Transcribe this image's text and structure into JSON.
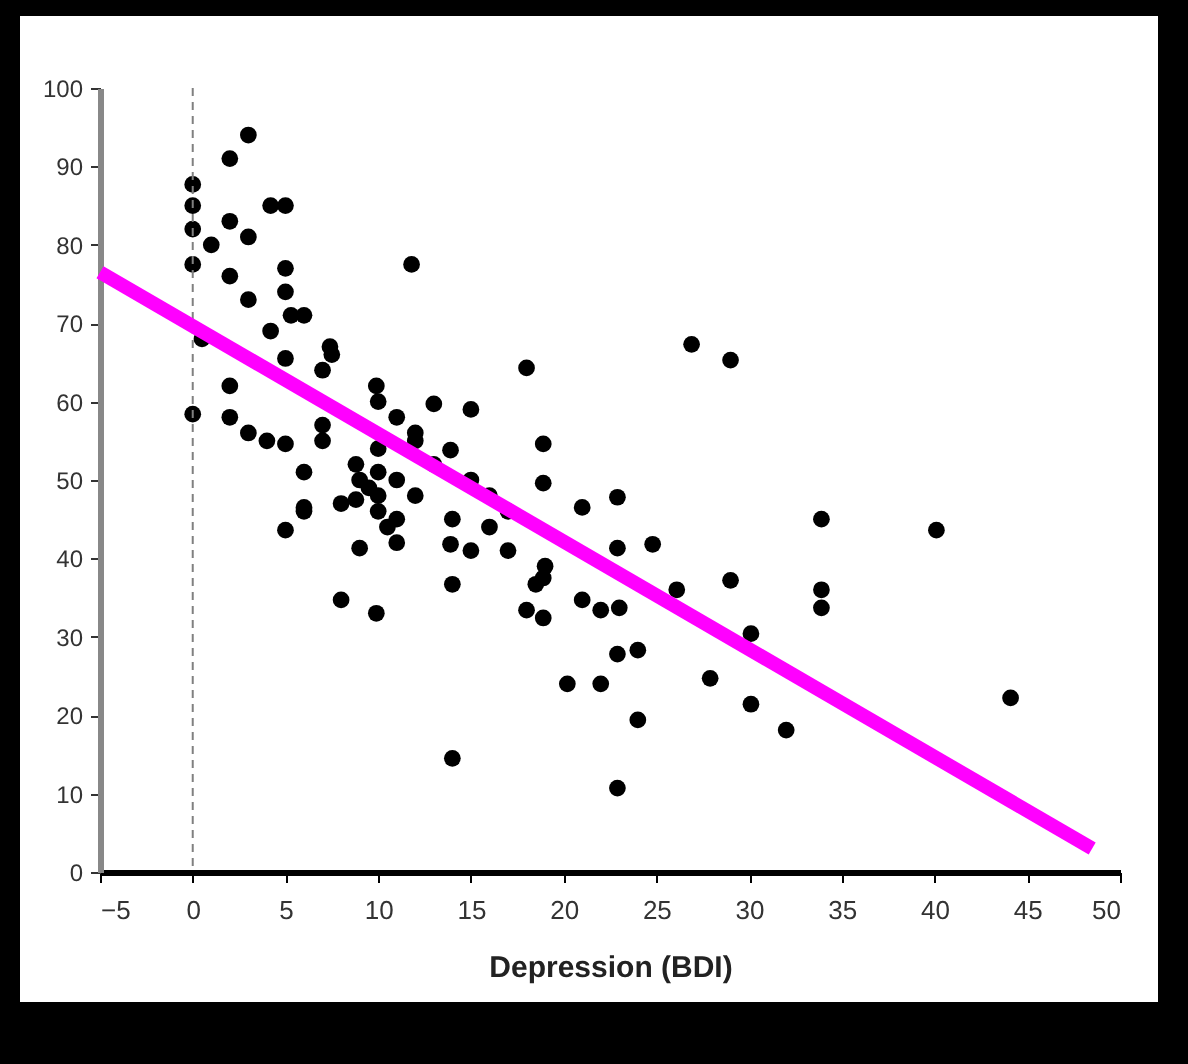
{
  "chart_data": {
    "type": "scatter",
    "xlabel": "Depression (BDI)",
    "xlim": [
      -5,
      50
    ],
    "xticks": [
      -5,
      0,
      5,
      10,
      15,
      20,
      25,
      30,
      35,
      40,
      45,
      50
    ],
    "ylim": [
      0,
      100
    ],
    "yticks": [
      0,
      10,
      20,
      30,
      40,
      50,
      60,
      70,
      80,
      90,
      100
    ],
    "grid": false,
    "marker": "circle",
    "ref_lines": [
      {
        "axis": "x",
        "value": 0,
        "color": "#808080",
        "line_style": "dashed"
      }
    ],
    "series": [
      {
        "type": "scatter",
        "color": "#000000",
        "x": [
          0,
          0,
          0,
          0,
          0,
          0.5,
          2,
          3,
          1,
          2,
          3,
          4.2,
          5,
          2,
          3,
          5,
          5,
          11.8,
          4.2,
          5.3,
          6,
          7.4,
          7.5,
          7,
          5,
          2,
          2,
          3,
          4,
          5,
          9.9,
          10,
          13,
          15,
          7,
          7,
          8.8,
          9.5,
          10,
          8,
          10.5,
          6,
          6,
          13.9,
          18.9,
          18.9,
          18,
          5,
          6,
          8.8,
          10,
          11,
          11,
          9,
          13.9,
          15,
          17,
          14,
          8,
          9.9,
          14,
          18.5,
          18,
          19,
          26.9,
          29,
          21,
          22.9,
          33.9,
          40.1,
          22.9,
          24.8,
          26.1,
          29,
          33.9,
          33.9,
          18.9,
          18.9,
          21,
          22,
          23,
          30.1,
          22.9,
          24,
          20.2,
          22,
          27.9,
          30.1,
          32,
          24,
          44.1,
          22.9,
          12,
          13,
          11,
          12,
          15,
          16,
          17,
          14,
          16,
          11,
          12,
          10,
          9,
          10
        ],
        "values": [
          87.7,
          85,
          82,
          77.5,
          58.4,
          68,
          91,
          94,
          80,
          83,
          81,
          85,
          85,
          76,
          73,
          77,
          74,
          77.5,
          69,
          71,
          71,
          67,
          66,
          64,
          65.5,
          62,
          58,
          56,
          55,
          54.6,
          62,
          60,
          59.7,
          59,
          57,
          55,
          52,
          49,
          51,
          47,
          44,
          51,
          46.5,
          53.8,
          54.6,
          49.6,
          64.3,
          43.6,
          46,
          47.5,
          46,
          45,
          42,
          41.3,
          41.8,
          41,
          41,
          36.7,
          34.7,
          33,
          14.5,
          36.7,
          33.4,
          39,
          67.3,
          65.3,
          46.5,
          47.8,
          45,
          43.6,
          41.3,
          41.8,
          36,
          37.2,
          36,
          33.7,
          37.5,
          32.4,
          34.7,
          33.4,
          33.7,
          30.4,
          27.8,
          28.3,
          24,
          24,
          24.7,
          21.4,
          18.1,
          19.4,
          22.2,
          10.7,
          55,
          52,
          50,
          48,
          50,
          48,
          46,
          45,
          44,
          58,
          56,
          54,
          50,
          48
        ]
      },
      {
        "type": "line",
        "color": "#ff00ff",
        "marker": "none",
        "line_style": "solid",
        "x": [
          -5,
          48.5
        ],
        "values": [
          76.5,
          3
        ]
      }
    ]
  }
}
